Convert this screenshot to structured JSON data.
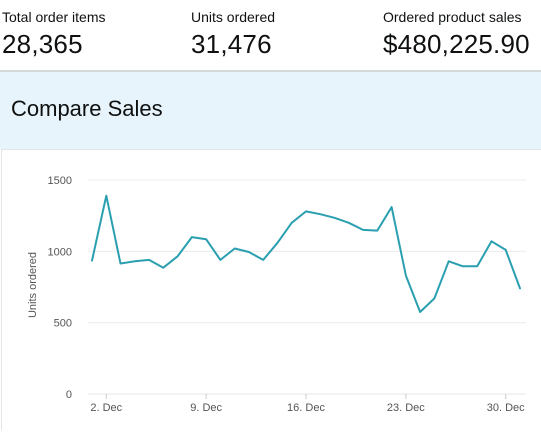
{
  "metrics": [
    {
      "label": "Total order items",
      "value": "28,365"
    },
    {
      "label": "Units ordered",
      "value": "31,476"
    },
    {
      "label": "Ordered product sales",
      "value": "$480,225.90"
    }
  ],
  "panel": {
    "title": "Compare Sales"
  },
  "colors": {
    "line": "#2a9fb0",
    "grid": "#ececec",
    "header_bg": "#e7f4fb"
  },
  "chart_data": {
    "type": "line",
    "title": "",
    "xlabel": "",
    "ylabel": "Units ordered",
    "ylim": [
      0,
      1500
    ],
    "yticks": [
      "0",
      "500",
      "1000",
      "1500"
    ],
    "xticks": [
      "2. Dec",
      "9. Dec",
      "16. Dec",
      "23. Dec",
      "30. Dec"
    ],
    "grid": true,
    "series": [
      {
        "values": [
          935,
          1390,
          915,
          930,
          940,
          885,
          965,
          1100,
          1085,
          940,
          1020,
          995,
          940,
          1060,
          1200,
          1280,
          1260,
          1235,
          1200,
          1150,
          1145,
          1310,
          830,
          575,
          670,
          930,
          895,
          895,
          1070,
          1010,
          740
        ],
        "x": [
          "1. Dec",
          "2. Dec",
          "3. Dec",
          "4. Dec",
          "5. Dec",
          "6. Dec",
          "7. Dec",
          "8. Dec",
          "9. Dec",
          "10. Dec",
          "11. Dec",
          "12. Dec",
          "13. Dec",
          "14. Dec",
          "15. Dec",
          "16. Dec",
          "17. Dec",
          "18. Dec",
          "19. Dec",
          "20. Dec",
          "21. Dec",
          "22. Dec",
          "23. Dec",
          "24. Dec",
          "25. Dec",
          "26. Dec",
          "27. Dec",
          "28. Dec",
          "29. Dec",
          "30. Dec",
          "31. Dec"
        ]
      }
    ]
  }
}
